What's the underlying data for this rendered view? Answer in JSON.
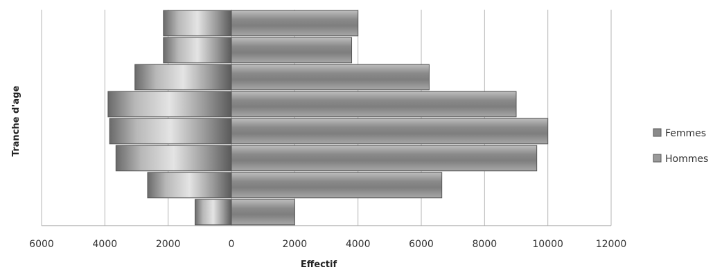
{
  "chart_data": {
    "type": "bar",
    "orientation": "horizontal",
    "stacked": true,
    "title": "",
    "xlabel": "Effectif",
    "ylabel": "Tranche d'age",
    "xlim": [
      -6000,
      12000
    ],
    "x_ticks": [
      -6000,
      -4000,
      -2000,
      0,
      2000,
      4000,
      6000,
      8000,
      10000,
      12000
    ],
    "x_tick_labels": [
      "6000",
      "4000",
      "2000",
      "0",
      "2000",
      "4000",
      "6000",
      "8000",
      "10000",
      "12000"
    ],
    "grid": true,
    "legend_position": "right",
    "categories": [
      "",
      "",
      "",
      "",
      "",
      "",
      "",
      ""
    ],
    "series": [
      {
        "name": "Femmes",
        "values": [
          -2150,
          -2150,
          -3050,
          -3900,
          -3850,
          -3650,
          -2650,
          -1150
        ],
        "color": "#9a9a9a"
      },
      {
        "name": "Hommes",
        "values": [
          4000,
          3800,
          6250,
          9000,
          10000,
          9650,
          6650,
          2000
        ],
        "color": "#8e8e8e"
      }
    ]
  }
}
